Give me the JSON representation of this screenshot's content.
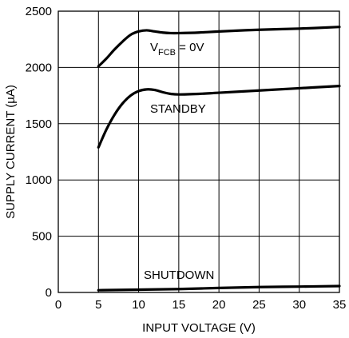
{
  "chart_data": {
    "type": "line",
    "xlabel": "INPUT VOLTAGE (V)",
    "ylabel": "SUPPLY CURRENT (µA)",
    "xlim": [
      0,
      35
    ],
    "ylim": [
      0,
      2500
    ],
    "xticks": [
      "0",
      "5",
      "10",
      "15",
      "20",
      "25",
      "30",
      "35"
    ],
    "yticks": [
      "0",
      "500",
      "1000",
      "1500",
      "2000",
      "2500"
    ],
    "grid": true,
    "series": [
      {
        "name": "V_FCB = 0V",
        "x": [
          5,
          6,
          7,
          8,
          9,
          10,
          11,
          12,
          13,
          14,
          15,
          17.5,
          20,
          25,
          30,
          35
        ],
        "y": [
          2010,
          2080,
          2160,
          2230,
          2290,
          2320,
          2330,
          2320,
          2310,
          2305,
          2305,
          2310,
          2320,
          2335,
          2345,
          2360
        ]
      },
      {
        "name": "STANDBY",
        "x": [
          5,
          6,
          7,
          8,
          9,
          10,
          11,
          12,
          13,
          14,
          15,
          17.5,
          20,
          25,
          30,
          35
        ],
        "y": [
          1290,
          1450,
          1580,
          1680,
          1750,
          1790,
          1805,
          1800,
          1780,
          1765,
          1760,
          1765,
          1775,
          1795,
          1815,
          1835
        ]
      },
      {
        "name": "SHUTDOWN",
        "x": [
          5,
          10,
          15,
          20,
          25,
          30,
          35
        ],
        "y": [
          20,
          25,
          30,
          40,
          48,
          52,
          57
        ]
      }
    ],
    "annotations": {
      "vfcb_main": "V",
      "vfcb_sub": "FCB",
      "vfcb_rest": " = 0V",
      "standby": "STANDBY",
      "shutdown": "SHUTDOWN"
    }
  }
}
